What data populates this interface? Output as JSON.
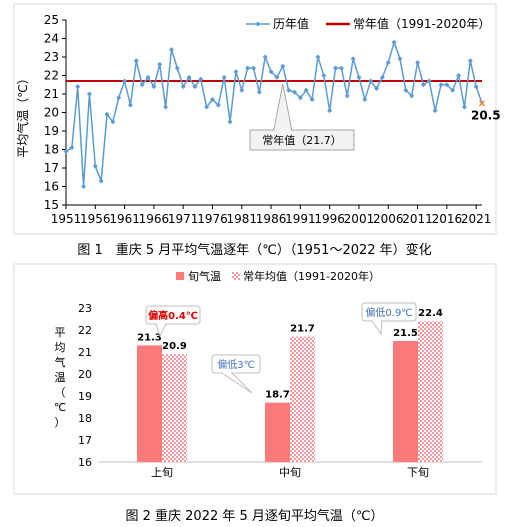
{
  "captions": {
    "fig1": "图 1　重庆 5 月平均气温逐年（℃）（1951～2022 年）变化",
    "fig2": "图 2  重庆 2022 年 5 月逐旬平均气温（℃）"
  },
  "chart_data": [
    {
      "type": "line",
      "title": "",
      "ylabel": "平均气温（℃）",
      "xlabel": "",
      "ylim": [
        15,
        25
      ],
      "y_ticks": [
        15,
        16,
        17,
        18,
        19,
        20,
        21,
        22,
        23,
        24,
        25
      ],
      "x_tick_labels": [
        "1951",
        "1956",
        "1961",
        "1966",
        "1971",
        "1976",
        "1981",
        "1986",
        "1991",
        "1996",
        "2001",
        "2006",
        "2011",
        "2016",
        "2021"
      ],
      "x_start": 1951,
      "x_end": 2022,
      "legend": {
        "placement": "top-right",
        "line_label": "历年值",
        "normal_label": "常年值（1991-2020年）"
      },
      "series": [
        {
          "name": "历年值",
          "color": "#5b9bd5",
          "x": [
            1951,
            1952,
            1953,
            1954,
            1955,
            1956,
            1957,
            1958,
            1959,
            1960,
            1961,
            1962,
            1963,
            1964,
            1965,
            1966,
            1967,
            1968,
            1969,
            1970,
            1971,
            1972,
            1973,
            1974,
            1975,
            1976,
            1977,
            1978,
            1979,
            1980,
            1981,
            1982,
            1983,
            1984,
            1985,
            1986,
            1987,
            1988,
            1989,
            1990,
            1991,
            1992,
            1993,
            1994,
            1995,
            1996,
            1997,
            1998,
            1999,
            2000,
            2001,
            2002,
            2003,
            2004,
            2005,
            2006,
            2007,
            2008,
            2009,
            2010,
            2011,
            2012,
            2013,
            2014,
            2015,
            2016,
            2017,
            2018,
            2019,
            2020,
            2021,
            2022
          ],
          "values": [
            17.9,
            18.1,
            21.4,
            16.0,
            21.0,
            17.1,
            16.3,
            19.9,
            19.5,
            20.8,
            21.7,
            20.4,
            22.8,
            21.5,
            21.9,
            21.4,
            22.6,
            20.3,
            23.4,
            22.4,
            21.4,
            21.9,
            21.4,
            21.8,
            20.3,
            20.7,
            20.4,
            21.9,
            19.5,
            22.2,
            21.2,
            22.4,
            22.4,
            21.1,
            23.0,
            22.2,
            21.9,
            22.5,
            21.2,
            21.1,
            20.8,
            21.2,
            20.7,
            23.0,
            22.0,
            20.1,
            22.4,
            22.4,
            20.9,
            22.9,
            21.9,
            20.7,
            21.7,
            21.3,
            21.9,
            22.7,
            23.8,
            22.9,
            21.2,
            20.9,
            22.7,
            21.5,
            21.7,
            20.1,
            21.5,
            21.5,
            21.2,
            22.0,
            20.3,
            22.8,
            21.4,
            20.5
          ]
        },
        {
          "name": "常年值（1991-2020年）",
          "color": "#c00000",
          "value": 21.7
        }
      ],
      "annotations": [
        {
          "text": "常年值（21.7）",
          "x": 1988,
          "y": 21.7
        },
        {
          "text": "20.5",
          "x": 2022,
          "y": 20.5,
          "color": "#ed7d31"
        }
      ],
      "grid": false
    },
    {
      "type": "bar",
      "title": "",
      "ylabel": "平均气温（℃）",
      "xlabel": "",
      "ylim": [
        16,
        23
      ],
      "y_ticks": [
        16,
        17,
        18,
        19,
        20,
        21,
        22,
        23
      ],
      "categories": [
        "上旬",
        "中旬",
        "下旬"
      ],
      "legend": {
        "placement": "top-center"
      },
      "series": [
        {
          "name": "旬气温",
          "color": "#ff7b7b",
          "values": [
            21.3,
            18.7,
            21.5
          ],
          "labels": [
            "21.3",
            "18.7",
            "21.5"
          ]
        },
        {
          "name": "常年均值（1991-2020年）",
          "color": "#ff9a9a",
          "values": [
            20.9,
            21.7,
            22.4
          ],
          "labels": [
            "20.9",
            "21.7",
            "22.4"
          ]
        }
      ],
      "callouts": [
        {
          "text": "偏高0.4℃",
          "category": "上旬",
          "color": "#e00000"
        },
        {
          "text": "偏低3℃",
          "category": "中旬",
          "color": "#4472c4"
        },
        {
          "text": "偏低0.9℃",
          "category": "下旬",
          "color": "#4472c4"
        }
      ],
      "grid": false
    }
  ]
}
